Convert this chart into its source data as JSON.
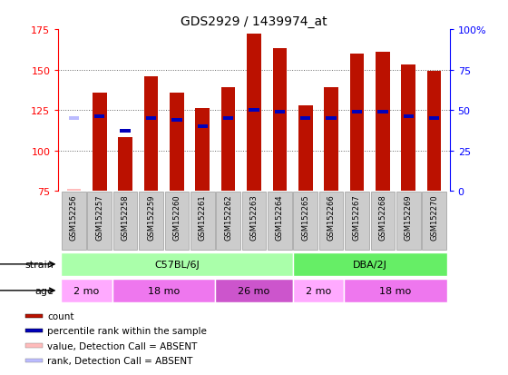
{
  "title": "GDS2929 / 1439974_at",
  "samples": [
    "GSM152256",
    "GSM152257",
    "GSM152258",
    "GSM152259",
    "GSM152260",
    "GSM152261",
    "GSM152262",
    "GSM152263",
    "GSM152264",
    "GSM152265",
    "GSM152266",
    "GSM152267",
    "GSM152268",
    "GSM152269",
    "GSM152270"
  ],
  "count_values": [
    76,
    136,
    108,
    146,
    136,
    126,
    139,
    172,
    163,
    128,
    139,
    160,
    161,
    153,
    149
  ],
  "rank_values": [
    120,
    121,
    112,
    120,
    119,
    115,
    120,
    125,
    124,
    120,
    120,
    124,
    124,
    121,
    120
  ],
  "absent_indices": [
    0
  ],
  "absent_rank_indices": [
    0
  ],
  "ymin": 75,
  "ymax": 175,
  "yticks": [
    75,
    100,
    125,
    150,
    175
  ],
  "right_ytick_vals": [
    75,
    100,
    125,
    150,
    175
  ],
  "right_ytick_labels": [
    "0",
    "25",
    "50",
    "75",
    "100%"
  ],
  "bar_color": "#bb1100",
  "rank_color": "#0000bb",
  "absent_count_color": "#ffbbbb",
  "absent_rank_color": "#bbbbff",
  "bar_bottom": 75,
  "strain_groups": [
    {
      "label": "C57BL/6J",
      "start": 0,
      "end": 9,
      "color": "#aaffaa"
    },
    {
      "label": "DBA/2J",
      "start": 9,
      "end": 15,
      "color": "#66ee66"
    }
  ],
  "age_groups": [
    {
      "label": "2 mo",
      "start": 0,
      "end": 2,
      "color": "#ffaaff"
    },
    {
      "label": "18 mo",
      "start": 2,
      "end": 6,
      "color": "#ee77ee"
    },
    {
      "label": "26 mo",
      "start": 6,
      "end": 9,
      "color": "#cc55cc"
    },
    {
      "label": "2 mo",
      "start": 9,
      "end": 11,
      "color": "#ffaaff"
    },
    {
      "label": "18 mo",
      "start": 11,
      "end": 15,
      "color": "#ee77ee"
    }
  ],
  "background_color": "#ffffff",
  "bar_width": 0.55,
  "rank_bar_width": 0.4,
  "rank_bar_height": 2.5,
  "sample_box_color": "#cccccc",
  "sample_box_edge": "#999999"
}
